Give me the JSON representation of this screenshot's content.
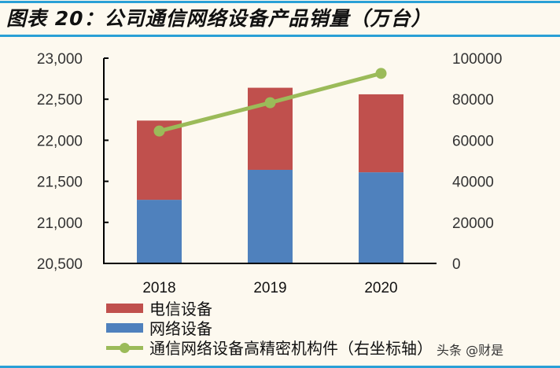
{
  "title": "图表 20：公司通信网络设备产品销量（万台）",
  "watermark": "头条 @财是",
  "chart_data": {
    "type": "bar",
    "stacked": true,
    "title": "图表 20：公司通信网络设备产品销量（万台）",
    "categories": [
      "2018",
      "2019",
      "2020"
    ],
    "left_axis": {
      "ylim": [
        20500,
        23000
      ],
      "ticks": [
        "20,500",
        "21,000",
        "21,500",
        "22,000",
        "22,500",
        "23,000"
      ],
      "tick_values": [
        20500,
        21000,
        21500,
        22000,
        22500,
        23000
      ]
    },
    "right_axis": {
      "ylim": [
        0,
        100000
      ],
      "ticks": [
        "0",
        "20000",
        "40000",
        "60000",
        "80000",
        "100000"
      ],
      "tick_values": [
        0,
        20000,
        40000,
        60000,
        80000,
        100000
      ]
    },
    "series": [
      {
        "name": "网络设备",
        "type": "bar",
        "axis": "left",
        "color": "#4f81bd",
        "stack_top": [
          21275,
          21640,
          21610
        ]
      },
      {
        "name": "电信设备",
        "type": "bar",
        "axis": "left",
        "color": "#c0504d",
        "stack_top": [
          22240,
          22640,
          22560
        ]
      },
      {
        "name": "通信网络设备高精密机构件（右坐标轴）",
        "type": "line",
        "axis": "right",
        "color": "#9bbb59",
        "values": [
          64500,
          78300,
          92600
        ]
      }
    ],
    "legend_position": "bottom-left",
    "grid": false
  }
}
